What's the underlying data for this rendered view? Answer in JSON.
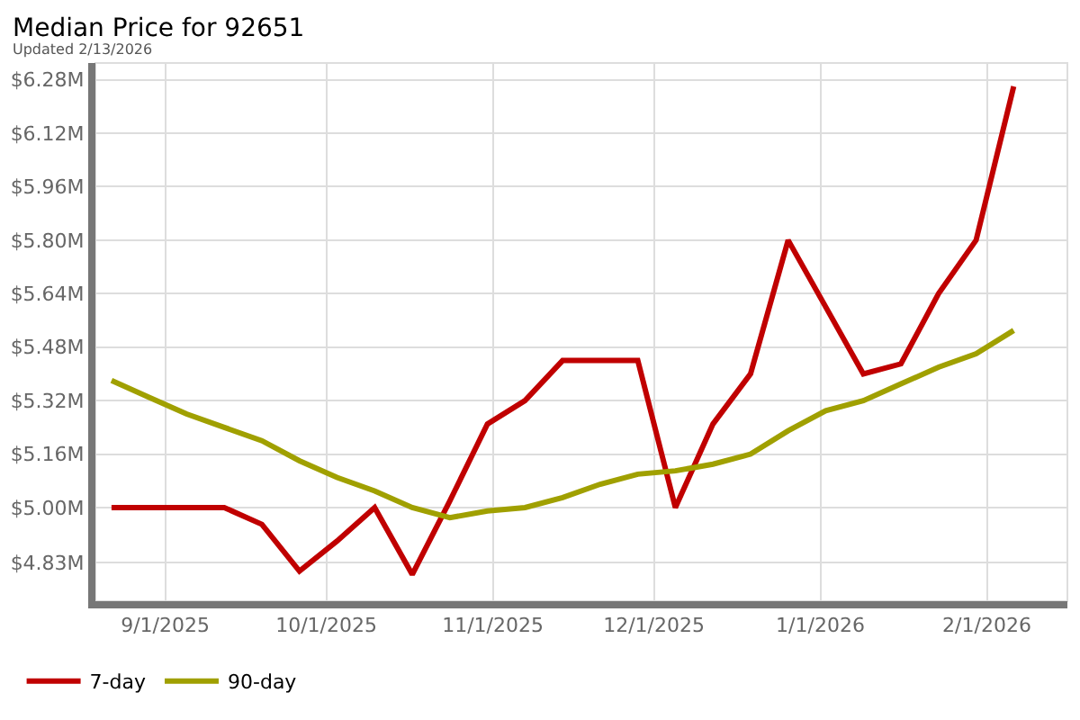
{
  "chart_data": {
    "type": "line",
    "title": "Median Price for 92651",
    "subtitle": "Updated 2/13/2026",
    "x": [
      "2025-08-22",
      "2025-08-29",
      "2025-09-05",
      "2025-09-12",
      "2025-09-19",
      "2025-09-26",
      "2025-10-03",
      "2025-10-10",
      "2025-10-17",
      "2025-10-24",
      "2025-10-31",
      "2025-11-07",
      "2025-11-14",
      "2025-11-21",
      "2025-11-28",
      "2025-12-05",
      "2025-12-12",
      "2025-12-19",
      "2025-12-26",
      "2026-01-02",
      "2026-01-09",
      "2026-01-16",
      "2026-01-23",
      "2026-01-30",
      "2026-02-06"
    ],
    "series": [
      {
        "name": "7-day",
        "color": "#c00000",
        "values": [
          5.0,
          5.0,
          5.0,
          5.0,
          4.95,
          4.81,
          4.9,
          5.0,
          4.8,
          5.02,
          5.25,
          5.32,
          5.44,
          5.44,
          5.44,
          5.0,
          5.25,
          5.4,
          5.8,
          5.6,
          5.4,
          5.43,
          5.64,
          5.8,
          6.26
        ]
      },
      {
        "name": "90-day",
        "color": "#a0a000",
        "values": [
          5.38,
          5.33,
          5.28,
          5.24,
          5.2,
          5.14,
          5.09,
          5.05,
          5.0,
          4.97,
          4.99,
          5.0,
          5.03,
          5.07,
          5.1,
          5.11,
          5.13,
          5.16,
          5.23,
          5.29,
          5.32,
          5.37,
          5.42,
          5.46,
          5.53
        ]
      }
    ],
    "xlim": [
      "2025-08-19",
      "2026-02-16"
    ],
    "xticks": [
      {
        "value": "2025-09-01",
        "label": "9/1/2025"
      },
      {
        "value": "2025-10-01",
        "label": "10/1/2025"
      },
      {
        "value": "2025-11-01",
        "label": "11/1/2025"
      },
      {
        "value": "2025-12-01",
        "label": "12/1/2025"
      },
      {
        "value": "2026-01-01",
        "label": "1/1/2026"
      },
      {
        "value": "2026-02-01",
        "label": "2/1/2026"
      }
    ],
    "ylim": [
      4.72,
      6.33
    ],
    "yticks": [
      {
        "value": 4.835,
        "label": "$4.83M"
      },
      {
        "value": 5.0,
        "label": "$5.00M"
      },
      {
        "value": 5.16,
        "label": "$5.16M"
      },
      {
        "value": 5.32,
        "label": "$5.32M"
      },
      {
        "value": 5.48,
        "label": "$5.48M"
      },
      {
        "value": 5.64,
        "label": "$5.64M"
      },
      {
        "value": 5.8,
        "label": "$5.80M"
      },
      {
        "value": 5.96,
        "label": "$5.96M"
      },
      {
        "value": 6.12,
        "label": "$6.12M"
      },
      {
        "value": 6.28,
        "label": "$6.28M"
      }
    ],
    "grid": true,
    "legend": "bottom left",
    "marker": "none",
    "line_style": "solid"
  }
}
